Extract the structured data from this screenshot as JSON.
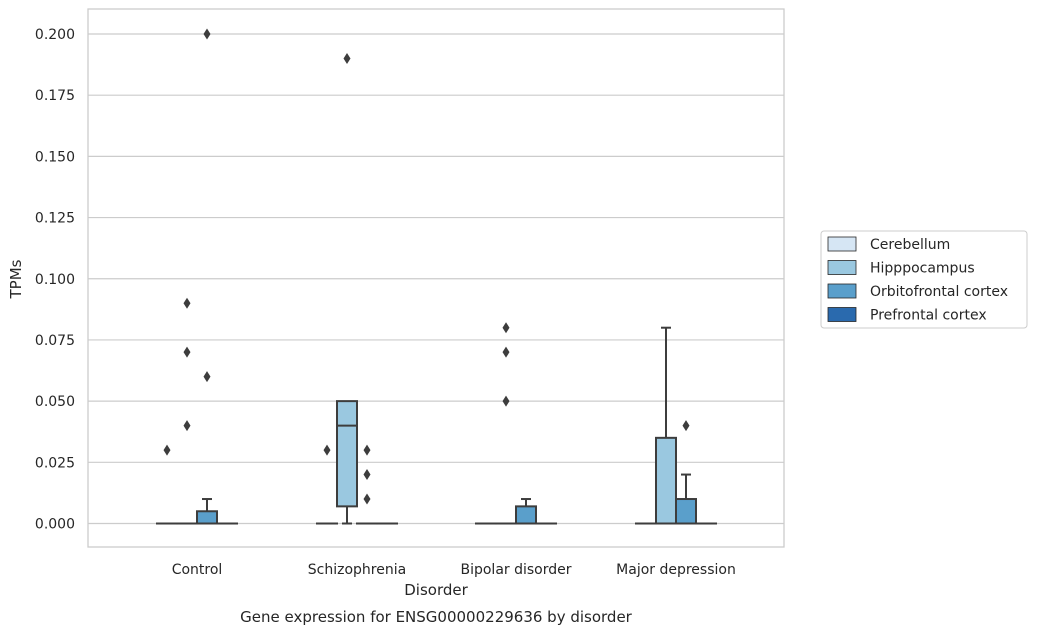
{
  "chart_data": {
    "type": "box",
    "caption": "Gene expression for ENSG00000229636 by disorder",
    "xlabel": "Disorder",
    "ylabel": "TPMs",
    "ylim": [
      -0.01,
      0.21
    ],
    "yticks": [
      "0.000",
      "0.025",
      "0.050",
      "0.075",
      "0.100",
      "0.125",
      "0.150",
      "0.175",
      "0.200"
    ],
    "ytick_values": [
      0,
      0.025,
      0.05,
      0.075,
      0.1,
      0.125,
      0.15,
      0.175,
      0.2
    ],
    "grid": "horizontal",
    "legend_position": "right",
    "categories": [
      "Control",
      "Schizophrenia",
      "Bipolar disorder",
      "Major depression"
    ],
    "series": [
      {
        "name": "Cerebellum",
        "color": "#d6e6f4"
      },
      {
        "name": "Hipppocampus",
        "color": "#9ac8e0"
      },
      {
        "name": "Orbitofrontal cortex",
        "color": "#5a9fcb"
      },
      {
        "name": "Prefrontal cortex",
        "color": "#2a6aae"
      }
    ],
    "boxes": [
      {
        "category": "Control",
        "series": "Cerebellum",
        "whislo": 0,
        "q1": 0,
        "med": 0,
        "q3": 0,
        "whishi": 0,
        "fliers": [
          0.03
        ]
      },
      {
        "category": "Control",
        "series": "Hipppocampus",
        "whislo": 0,
        "q1": 0,
        "med": 0,
        "q3": 0,
        "whishi": 0,
        "fliers": [
          0.09,
          0.07,
          0.04
        ]
      },
      {
        "category": "Control",
        "series": "Orbitofrontal cortex",
        "whislo": 0,
        "q1": 0,
        "med": 0,
        "q3": 0.005,
        "whishi": 0.01,
        "fliers": [
          0.2,
          0.06
        ]
      },
      {
        "category": "Control",
        "series": "Prefrontal cortex",
        "whislo": 0,
        "q1": 0,
        "med": 0,
        "q3": 0,
        "whishi": 0,
        "fliers": []
      },
      {
        "category": "Schizophrenia",
        "series": "Cerebellum",
        "whislo": 0,
        "q1": 0,
        "med": 0,
        "q3": 0,
        "whishi": 0,
        "fliers": [
          0.03
        ]
      },
      {
        "category": "Schizophrenia",
        "series": "Hipppocampus",
        "whislo": 0,
        "q1": 0.007,
        "med": 0.04,
        "q3": 0.05,
        "whishi": 0.05,
        "fliers": [
          0.19
        ]
      },
      {
        "category": "Schizophrenia",
        "series": "Orbitofrontal cortex",
        "whislo": 0,
        "q1": 0,
        "med": 0,
        "q3": 0,
        "whishi": 0,
        "fliers": [
          0.03,
          0.02,
          0.01
        ]
      },
      {
        "category": "Schizophrenia",
        "series": "Prefrontal cortex",
        "whislo": 0,
        "q1": 0,
        "med": 0,
        "q3": 0,
        "whishi": 0,
        "fliers": []
      },
      {
        "category": "Bipolar disorder",
        "series": "Cerebellum",
        "whislo": 0,
        "q1": 0,
        "med": 0,
        "q3": 0,
        "whishi": 0,
        "fliers": []
      },
      {
        "category": "Bipolar disorder",
        "series": "Hipppocampus",
        "whislo": 0,
        "q1": 0,
        "med": 0,
        "q3": 0,
        "whishi": 0,
        "fliers": [
          0.05,
          0.08,
          0.07
        ]
      },
      {
        "category": "Bipolar disorder",
        "series": "Orbitofrontal cortex",
        "whislo": 0,
        "q1": 0,
        "med": 0,
        "q3": 0.007,
        "whishi": 0.01,
        "fliers": []
      },
      {
        "category": "Bipolar disorder",
        "series": "Prefrontal cortex",
        "whislo": 0,
        "q1": 0,
        "med": 0,
        "q3": 0,
        "whishi": 0,
        "fliers": []
      },
      {
        "category": "Major depression",
        "series": "Cerebellum",
        "whislo": 0,
        "q1": 0,
        "med": 0,
        "q3": 0,
        "whishi": 0,
        "fliers": []
      },
      {
        "category": "Major depression",
        "series": "Hipppocampus",
        "whislo": 0,
        "q1": 0,
        "med": 0,
        "q3": 0.035,
        "whishi": 0.08,
        "fliers": []
      },
      {
        "category": "Major depression",
        "series": "Orbitofrontal cortex",
        "whislo": 0,
        "q1": 0,
        "med": 0,
        "q3": 0.01,
        "whishi": 0.02,
        "fliers": [
          0.04
        ]
      },
      {
        "category": "Major depression",
        "series": "Prefrontal cortex",
        "whislo": 0,
        "q1": 0,
        "med": 0,
        "q3": 0,
        "whishi": 0,
        "fliers": []
      }
    ]
  }
}
